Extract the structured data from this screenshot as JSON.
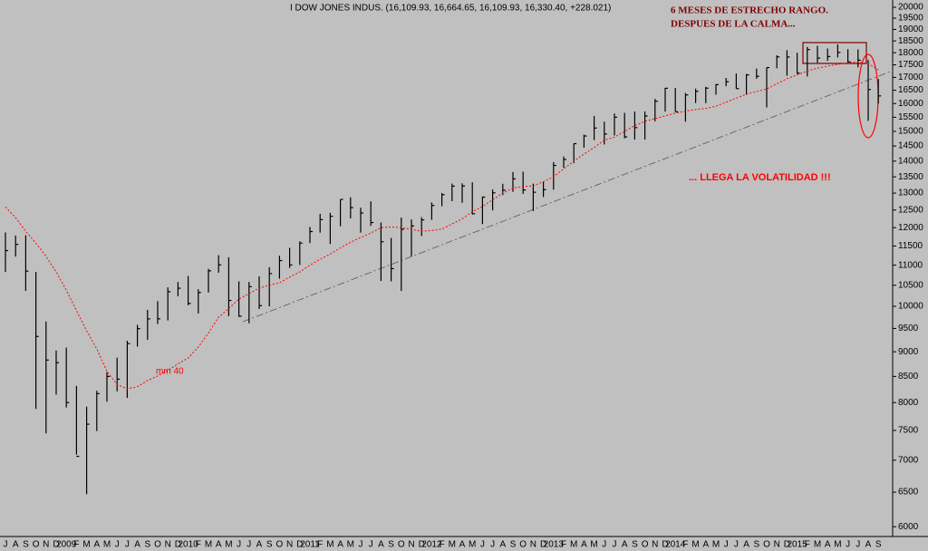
{
  "chart_data": {
    "type": "ohlc",
    "title": "I DOW JONES INDUS. (16,109.93, 16,664.65, 16,109.93, 16,330.40, +228.021)",
    "annotations": [
      "6 MESES DE ESTRECHO RANGO.",
      "DESPUES DE LA CALMA...",
      "... LLEGA LA VOLATILIDAD !!!"
    ],
    "categories": [
      "J",
      "A",
      "S",
      "O",
      "N",
      "D",
      "2009",
      "F",
      "M",
      "A",
      "M",
      "J",
      "J",
      "A",
      "S",
      "O",
      "N",
      "D",
      "2010",
      "F",
      "M",
      "A",
      "M",
      "J",
      "J",
      "A",
      "S",
      "O",
      "N",
      "D",
      "2011",
      "F",
      "M",
      "A",
      "M",
      "J",
      "J",
      "A",
      "S",
      "O",
      "N",
      "D",
      "2012",
      "F",
      "M",
      "A",
      "M",
      "J",
      "J",
      "A",
      "S",
      "O",
      "N",
      "D",
      "2013",
      "F",
      "M",
      "A",
      "M",
      "J",
      "J",
      "A",
      "S",
      "O",
      "N",
      "D",
      "2014",
      "F",
      "M",
      "A",
      "M",
      "J",
      "J",
      "A",
      "S",
      "O",
      "N",
      "D",
      "2015",
      "F",
      "M",
      "A",
      "M",
      "J",
      "J",
      "A",
      "S"
    ],
    "high": [
      11867,
      11782,
      11790,
      10831,
      9654,
      9026,
      9088,
      8315,
      7925,
      8222,
      8588,
      8878,
      9233,
      9580,
      9917,
      10120,
      10450,
      10580,
      10730,
      10402,
      10907,
      11258,
      11205,
      10595,
      10580,
      10720,
      10948,
      11245,
      11451,
      11625,
      12020,
      12391,
      12419,
      12811,
      12876,
      12569,
      12753,
      12143,
      11717,
      12284,
      12230,
      12294,
      12720,
      13005,
      13290,
      13297,
      13330,
      12898,
      13110,
      13284,
      13650,
      13662,
      13289,
      13350,
      13970,
      14150,
      14585,
      14888,
      15542,
      15340,
      15634,
      15658,
      15709,
      15710,
      16174,
      16588,
      16588,
      16398,
      16563,
      16631,
      16736,
      16978,
      17152,
      17136,
      17350,
      17390,
      17894,
      18103,
      18000,
      18244,
      18289,
      18175,
      18351,
      18144,
      18137,
      17700,
      16933
    ],
    "low": [
      10827,
      11221,
      10365,
      7882,
      7449,
      8149,
      7909,
      7092,
      6470,
      7490,
      8016,
      8212,
      8087,
      9108,
      9252,
      9597,
      9678,
      10236,
      10025,
      9835,
      10325,
      10810,
      9774,
      9757,
      9614,
      9936,
      9997,
      10661,
      10929,
      11006,
      11578,
      11861,
      11555,
      12037,
      12260,
      11862,
      12050,
      10605,
      10597,
      10362,
      11231,
      11767,
      12218,
      12611,
      12760,
      12711,
      12370,
      12101,
      12490,
      12940,
      13040,
      12977,
      12471,
      12883,
      13104,
      13784,
      13937,
      14444,
      14700,
      14551,
      14859,
      14760,
      14719,
      14719,
      15351,
      15703,
      15699,
      15340,
      16018,
      16015,
      16333,
      16653,
      16563,
      16333,
      16945,
      15855,
      17360,
      17068,
      17136,
      17038,
      17585,
      17662,
      17804,
      17596,
      17400,
      15370,
      16001
    ],
    "close": [
      11378,
      11543,
      10850,
      9325,
      8829,
      8776,
      8000,
      7063,
      7609,
      8168,
      8500,
      8447,
      9172,
      9496,
      9712,
      9713,
      10344,
      10428,
      10067,
      10325,
      10857,
      11009,
      10137,
      9774,
      10466,
      10015,
      10788,
      11118,
      11006,
      11578,
      11892,
      12226,
      12320,
      12811,
      12570,
      12414,
      12143,
      11614,
      10913,
      11955,
      12046,
      12218,
      12633,
      12952,
      13212,
      13214,
      12393,
      12880,
      13009,
      13091,
      13437,
      13096,
      13026,
      13104,
      13861,
      14054,
      14579,
      14840,
      15116,
      14910,
      15500,
      14810,
      15130,
      15546,
      16086,
      16577,
      15699,
      16322,
      16458,
      16581,
      16717,
      16827,
      16563,
      17098,
      17043,
      17391,
      17828,
      17823,
      17165,
      18133,
      17776,
      17841,
      18011,
      17620,
      17690,
      16528,
      16285
    ],
    "color": "#000000",
    "series": [
      {
        "name": "mm 40",
        "color": "#ff0000",
        "values": [
          12590,
          12280,
          11900,
          11580,
          11230,
          10830,
          10380,
          9900,
          9450,
          9060,
          8600,
          8340,
          8260,
          8300,
          8420,
          8510,
          8620,
          8750,
          8870,
          9100,
          9400,
          9750,
          9950,
          10170,
          10300,
          10430,
          10500,
          10560,
          10700,
          10830,
          11000,
          11150,
          11290,
          11450,
          11600,
          11730,
          11850,
          12000,
          12020,
          12000,
          11950,
          11900,
          11920,
          11960,
          12100,
          12250,
          12450,
          12600,
          12800,
          13000,
          13150,
          13200,
          13220,
          13350,
          13500,
          13750,
          14000,
          14230,
          14450,
          14700,
          14800,
          15000,
          15200,
          15350,
          15450,
          15550,
          15650,
          15720,
          15780,
          15820,
          15900,
          16050,
          16200,
          16350,
          16450,
          16550,
          16750,
          16950,
          17100,
          17250,
          17370,
          17450,
          17520,
          17580,
          17620,
          17550,
          17300
        ]
      }
    ],
    "log_scale": true,
    "ylim": [
      5890,
      20339
    ],
    "yticks": [
      6000,
      6500,
      7000,
      7500,
      8000,
      8500,
      9000,
      9500,
      10000,
      10500,
      11000,
      11500,
      12000,
      12500,
      13000,
      13500,
      14000,
      14500,
      15000,
      15500,
      16000,
      16500,
      17000,
      17500,
      18000,
      18500,
      19000,
      19500,
      20000
    ]
  }
}
